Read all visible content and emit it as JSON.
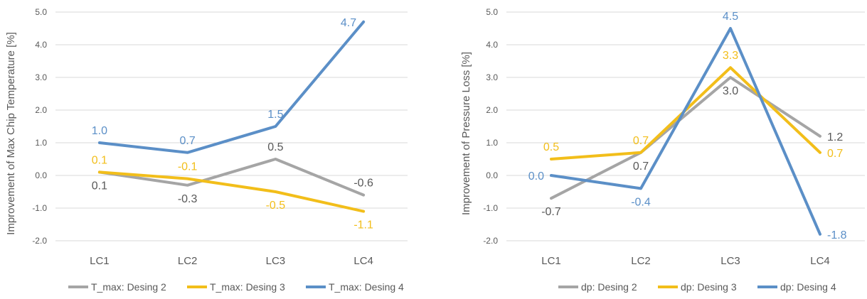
{
  "chart_data": [
    {
      "type": "line",
      "title": "",
      "xlabel": "",
      "ylabel": "Improvement of Max Chip Temperature [%]",
      "ylim": [
        -2.0,
        5.0
      ],
      "yticks": [
        "-2.0",
        "-1.0",
        "0.0",
        "1.0",
        "2.0",
        "3.0",
        "4.0",
        "5.0"
      ],
      "categories": [
        "LC1",
        "LC2",
        "LC3",
        "LC4"
      ],
      "grid": true,
      "legend": "bottom",
      "series": [
        {
          "name": "T_max: Desing 2",
          "color": "#a5a5a5",
          "values": [
            0.1,
            -0.3,
            0.5,
            -0.6
          ],
          "labels": [
            "0.1",
            "-0.3",
            "0.5",
            "-0.6"
          ],
          "label_pos": [
            "below",
            "below",
            "above",
            "above"
          ]
        },
        {
          "name": "T_max: Desing 3",
          "color": "#f2be1a",
          "values": [
            0.1,
            -0.1,
            -0.5,
            -1.1
          ],
          "labels": [
            "0.1",
            "-0.1",
            "-0.5",
            "-1.1"
          ],
          "label_pos": [
            "above",
            "above",
            "below",
            "below"
          ]
        },
        {
          "name": "T_max: Desing 4",
          "color": "#5b8fc7",
          "values": [
            1.0,
            0.7,
            1.5,
            4.7
          ],
          "labels": [
            "1.0",
            "0.7",
            "1.5",
            "4.7"
          ],
          "label_pos": [
            "above",
            "above",
            "above",
            "left"
          ]
        }
      ]
    },
    {
      "type": "line",
      "title": "",
      "xlabel": "",
      "ylabel": "Improvement of Pressure Loss [%]",
      "ylim": [
        -2.0,
        5.0
      ],
      "yticks": [
        "-2.0",
        "-1.0",
        "0.0",
        "1.0",
        "2.0",
        "3.0",
        "4.0",
        "5.0"
      ],
      "categories": [
        "LC1",
        "LC2",
        "LC3",
        "LC4"
      ],
      "grid": true,
      "legend": "bottom",
      "series": [
        {
          "name": "dp: Desing 2",
          "color": "#a5a5a5",
          "values": [
            -0.7,
            0.7,
            3.0,
            1.2
          ],
          "labels": [
            "-0.7",
            "0.7",
            "3.0",
            "1.2"
          ],
          "label_pos": [
            "below",
            "below",
            "below",
            "right"
          ]
        },
        {
          "name": "dp: Desing 3",
          "color": "#f2be1a",
          "values": [
            0.5,
            0.7,
            3.3,
            0.7
          ],
          "labels": [
            "0.5",
            "0.7",
            "3.3",
            "0.7"
          ],
          "label_pos": [
            "above",
            "above",
            "above",
            "right"
          ]
        },
        {
          "name": "dp: Desing 4",
          "color": "#5b8fc7",
          "values": [
            0.0,
            -0.4,
            4.5,
            -1.8
          ],
          "labels": [
            "0.0",
            "-0.4",
            "4.5",
            "-1.8"
          ],
          "label_pos": [
            "left",
            "below",
            "above",
            "right"
          ]
        }
      ]
    }
  ]
}
